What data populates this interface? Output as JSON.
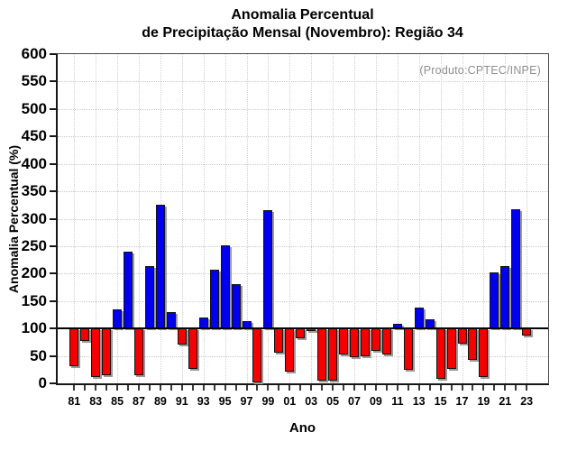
{
  "title": {
    "line1": "Anomalia Percentual",
    "line2": "de Precipitação Mensal (Novembro): Região 34"
  },
  "chart_data": {
    "type": "bar",
    "title": "Anomalia Percentual de Precipitação Mensal (Novembro): Região 34",
    "xlabel": "Ano",
    "ylabel": "Anomalia Percentual (%)",
    "annotation": "(Produto:CPTEC/INPE)",
    "ylim": [
      0,
      600
    ],
    "ytick_step": 50,
    "baseline": 100,
    "grid": "dotted horizontal every 50, dotted vertical every 2 years",
    "legend_position": "none",
    "categories": [
      "81",
      "82",
      "83",
      "84",
      "85",
      "86",
      "87",
      "88",
      "89",
      "90",
      "91",
      "92",
      "93",
      "94",
      "95",
      "96",
      "97",
      "98",
      "99",
      "00",
      "01",
      "02",
      "03",
      "04",
      "05",
      "06",
      "07",
      "08",
      "09",
      "10",
      "11",
      "12",
      "13",
      "14",
      "15",
      "16",
      "17",
      "18",
      "19",
      "20",
      "21",
      "22",
      "23"
    ],
    "values": [
      32,
      77,
      11,
      14,
      135,
      240,
      15,
      214,
      326,
      130,
      70,
      26,
      120,
      207,
      251,
      181,
      113,
      2,
      316,
      56,
      22,
      82,
      95,
      5,
      5,
      53,
      48,
      49,
      59,
      52,
      108,
      25,
      138,
      116,
      9,
      27,
      72,
      42,
      11,
      203,
      214,
      317,
      87
    ],
    "ytick_labels": [
      "0",
      "50",
      "100",
      "150",
      "200",
      "250",
      "300",
      "350",
      "400",
      "450",
      "500",
      "550",
      "600"
    ],
    "xtick_labels": [
      "81",
      "83",
      "85",
      "87",
      "89",
      "91",
      "93",
      "95",
      "97",
      "99",
      "01",
      "03",
      "05",
      "07",
      "09",
      "11",
      "13",
      "15",
      "17",
      "19",
      "21",
      "23"
    ],
    "colors": {
      "above_baseline": "#0000ee",
      "below_baseline": "#f40000",
      "bar_border": "#141414",
      "bar_shadow": "#9b9b9b",
      "annotation_text": "#8f8f8f",
      "grid": "#c9c9c9"
    }
  }
}
